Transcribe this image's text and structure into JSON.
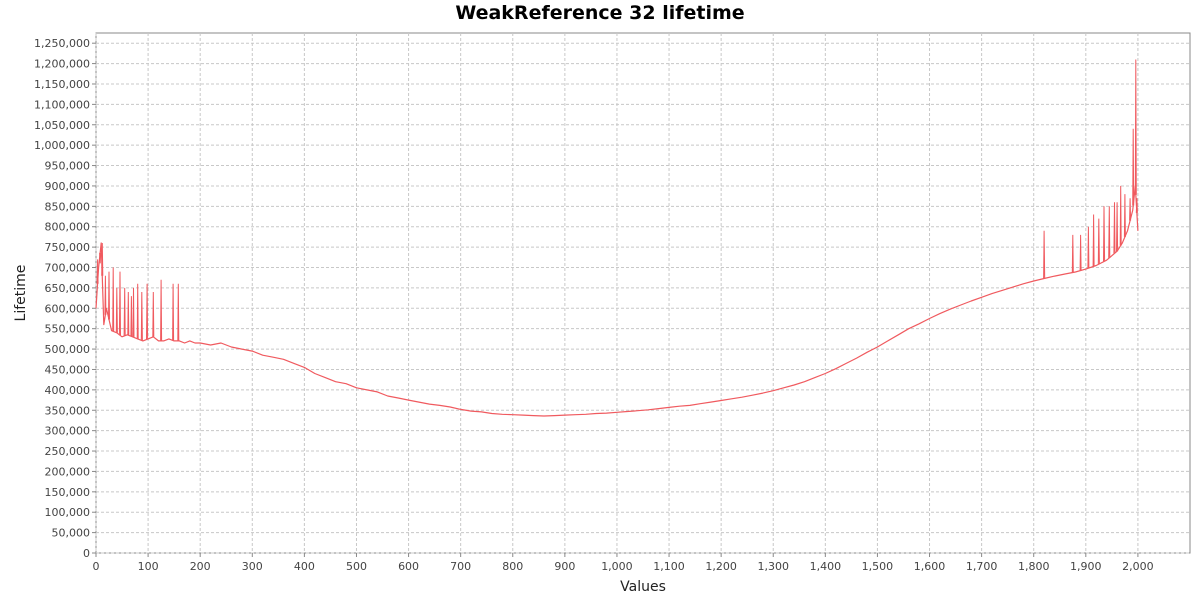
{
  "chart_data": {
    "type": "line",
    "title": "WeakReference 32 lifetime",
    "xlabel": "Values",
    "ylabel": "Lifetime",
    "xlim": [
      0,
      2100
    ],
    "ylim": [
      0,
      1275000
    ],
    "x_ticks": [
      0,
      100,
      200,
      300,
      400,
      500,
      600,
      700,
      800,
      900,
      1000,
      1100,
      1200,
      1300,
      1400,
      1500,
      1600,
      1700,
      1800,
      1900,
      2000
    ],
    "x_tick_labels": [
      "0",
      "100",
      "200",
      "300",
      "400",
      "500",
      "600",
      "700",
      "800",
      "900",
      "1,000",
      "1,100",
      "1,200",
      "1,300",
      "1,400",
      "1,500",
      "1,600",
      "1,700",
      "1,800",
      "1,900",
      "2,000"
    ],
    "y_ticks": [
      0,
      50000,
      100000,
      150000,
      200000,
      250000,
      300000,
      350000,
      400000,
      450000,
      500000,
      550000,
      600000,
      650000,
      700000,
      750000,
      800000,
      850000,
      900000,
      950000,
      1000000,
      1050000,
      1100000,
      1150000,
      1200000,
      1250000
    ],
    "y_tick_labels": [
      "0",
      "50,000",
      "100,000",
      "150,000",
      "200,000",
      "250,000",
      "300,000",
      "350,000",
      "400,000",
      "450,000",
      "500,000",
      "550,000",
      "600,000",
      "650,000",
      "700,000",
      "750,000",
      "800,000",
      "850,000",
      "900,000",
      "950,000",
      "1,000,000",
      "1,050,000",
      "1,100,000",
      "1,150,000",
      "1,200,000",
      "1,250,000"
    ],
    "grid": true,
    "legend": "none",
    "series_color": "#f05a5f",
    "series": [
      {
        "x": [
          0,
          5,
          10,
          15,
          20,
          30,
          40,
          50,
          60,
          70,
          80,
          90,
          100,
          110,
          120,
          130,
          140,
          150,
          160,
          170,
          180,
          190,
          200,
          220,
          240,
          260,
          280,
          300,
          320,
          340,
          360,
          380,
          400,
          420,
          440,
          460,
          480,
          500,
          520,
          540,
          560,
          580,
          600,
          620,
          640,
          660,
          680,
          700,
          720,
          740,
          760,
          780,
          800,
          820,
          840,
          860,
          880,
          900,
          920,
          940,
          960,
          980,
          1000,
          1020,
          1040,
          1060,
          1080,
          1100,
          1120,
          1140,
          1160,
          1180,
          1200,
          1220,
          1240,
          1260,
          1280,
          1300,
          1320,
          1340,
          1360,
          1380,
          1400,
          1420,
          1440,
          1460,
          1480,
          1500,
          1520,
          1540,
          1560,
          1580,
          1600,
          1620,
          1640,
          1660,
          1680,
          1700,
          1720,
          1740,
          1760,
          1780,
          1800,
          1820,
          1840,
          1860,
          1880,
          1900,
          1920,
          1940,
          1960,
          1970,
          1980,
          1990,
          1995,
          2000
        ],
        "y": [
          600000,
          700000,
          760000,
          560000,
          600000,
          545000,
          540000,
          530000,
          535000,
          530000,
          525000,
          520000,
          525000,
          530000,
          520000,
          520000,
          525000,
          520000,
          520000,
          515000,
          520000,
          515000,
          515000,
          510000,
          515000,
          505000,
          500000,
          495000,
          485000,
          480000,
          475000,
          465000,
          455000,
          440000,
          430000,
          420000,
          415000,
          405000,
          400000,
          395000,
          385000,
          380000,
          375000,
          370000,
          365000,
          362000,
          358000,
          352000,
          348000,
          346000,
          342000,
          340000,
          339000,
          338000,
          337000,
          336000,
          337000,
          338000,
          339000,
          340000,
          342000,
          343000,
          345000,
          347000,
          349000,
          351000,
          354000,
          357000,
          360000,
          362000,
          366000,
          370000,
          374000,
          378000,
          382000,
          387000,
          392000,
          398000,
          405000,
          412000,
          420000,
          430000,
          440000,
          452000,
          465000,
          478000,
          492000,
          505000,
          520000,
          535000,
          550000,
          562000,
          575000,
          587000,
          598000,
          608000,
          618000,
          627000,
          636000,
          644000,
          652000,
          660000,
          667000,
          673000,
          679000,
          684000,
          689000,
          696000,
          705000,
          718000,
          740000,
          760000,
          790000,
          840000,
          900000,
          790000
        ]
      }
    ],
    "spikes": {
      "x": [
        3,
        8,
        12,
        18,
        25,
        33,
        40,
        46,
        55,
        62,
        68,
        72,
        80,
        88,
        98,
        110,
        125,
        148,
        158,
        1820,
        1875,
        1890,
        1905,
        1915,
        1925,
        1935,
        1945,
        1955,
        1960,
        1967,
        1975,
        1985,
        1991,
        1996,
        1998
      ],
      "y": [
        720000,
        710000,
        760000,
        680000,
        690000,
        700000,
        650000,
        690000,
        650000,
        640000,
        630000,
        650000,
        660000,
        640000,
        660000,
        640000,
        670000,
        660000,
        660000,
        790000,
        780000,
        780000,
        800000,
        830000,
        820000,
        850000,
        850000,
        860000,
        860000,
        900000,
        880000,
        870000,
        1040000,
        1210000,
        870000
      ]
    }
  }
}
